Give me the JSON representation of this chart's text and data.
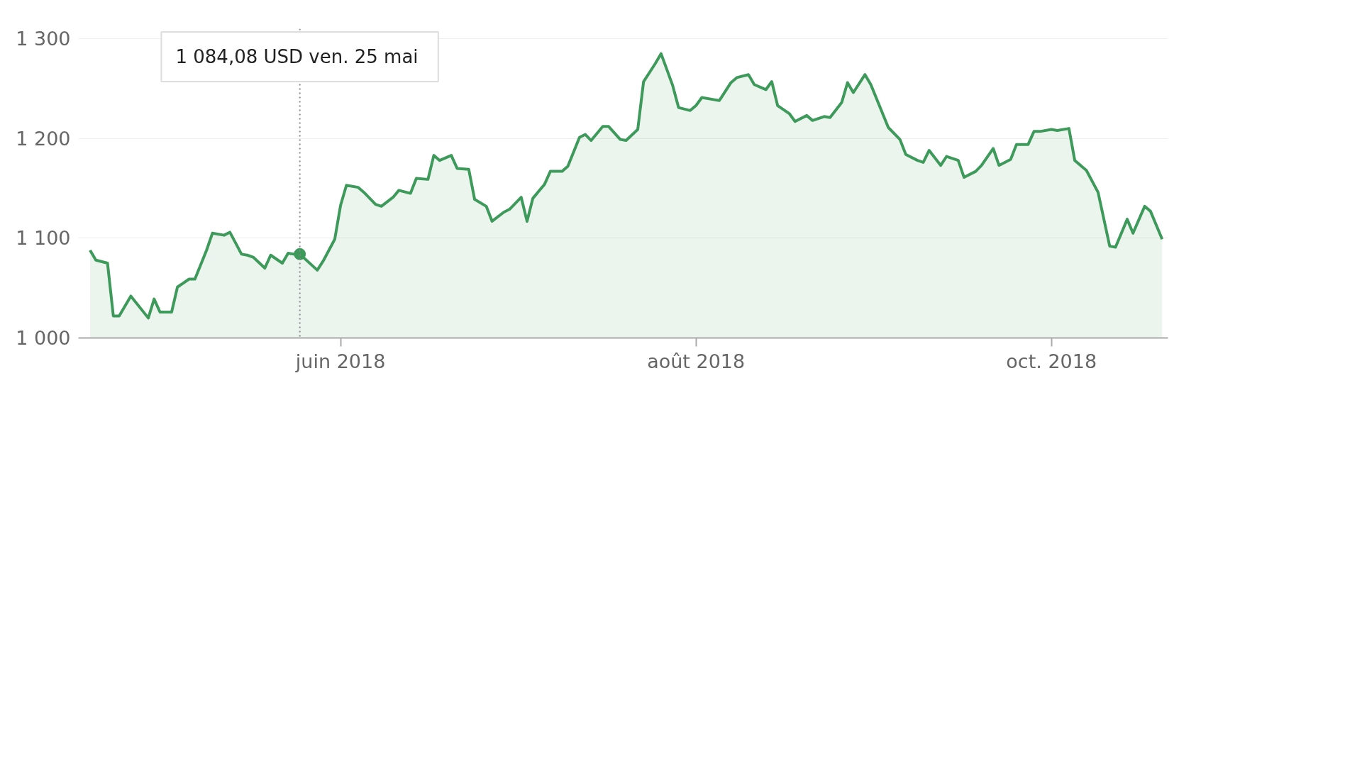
{
  "chart_data": {
    "type": "area",
    "color": "#3d9a5a",
    "grid": "y",
    "marker": "none",
    "line_style": "solid",
    "x": [
      "2018-04-19",
      "2018-04-20",
      "2018-04-22",
      "2018-04-23",
      "2018-04-24",
      "2018-04-26",
      "2018-04-29",
      "2018-04-30",
      "2018-05-01",
      "2018-05-03",
      "2018-05-04",
      "2018-05-06",
      "2018-05-07",
      "2018-05-09",
      "2018-05-10",
      "2018-05-12",
      "2018-05-13",
      "2018-05-15",
      "2018-05-16",
      "2018-05-17",
      "2018-05-19",
      "2018-05-20",
      "2018-05-22",
      "2018-05-23",
      "2018-05-24",
      "2018-05-25",
      "2018-05-28",
      "2018-05-29",
      "2018-05-31",
      "2018-06-01",
      "2018-06-02",
      "2018-06-04",
      "2018-06-05",
      "2018-06-07",
      "2018-06-08",
      "2018-06-10",
      "2018-06-11",
      "2018-06-13",
      "2018-06-14",
      "2018-06-16",
      "2018-06-17",
      "2018-06-18",
      "2018-06-20",
      "2018-06-21",
      "2018-06-23",
      "2018-06-24",
      "2018-06-26",
      "2018-06-27",
      "2018-06-29",
      "2018-06-30",
      "2018-07-02",
      "2018-07-03",
      "2018-07-04",
      "2018-07-06",
      "2018-07-07",
      "2018-07-09",
      "2018-07-10",
      "2018-07-12",
      "2018-07-13",
      "2018-07-14",
      "2018-07-16",
      "2018-07-17",
      "2018-07-19",
      "2018-07-20",
      "2018-07-22",
      "2018-07-23",
      "2018-07-25",
      "2018-07-26",
      "2018-07-28",
      "2018-07-29",
      "2018-07-31",
      "2018-08-01",
      "2018-08-02",
      "2018-08-04",
      "2018-08-05",
      "2018-08-07",
      "2018-08-08",
      "2018-08-10",
      "2018-08-11",
      "2018-08-13",
      "2018-08-14",
      "2018-08-15",
      "2018-08-17",
      "2018-08-18",
      "2018-08-20",
      "2018-08-21",
      "2018-08-23",
      "2018-08-24",
      "2018-08-26",
      "2018-08-27",
      "2018-08-28",
      "2018-08-30",
      "2018-08-31",
      "2018-09-03",
      "2018-09-05",
      "2018-09-06",
      "2018-09-08",
      "2018-09-09",
      "2018-09-10",
      "2018-09-12",
      "2018-09-13",
      "2018-09-15",
      "2018-09-16",
      "2018-09-18",
      "2018-09-19",
      "2018-09-21",
      "2018-09-22",
      "2018-09-24",
      "2018-09-25",
      "2018-09-27",
      "2018-09-28",
      "2018-09-29",
      "2018-10-01",
      "2018-10-02",
      "2018-10-04",
      "2018-10-05",
      "2018-10-07",
      "2018-10-09",
      "2018-10-11",
      "2018-10-12",
      "2018-10-14",
      "2018-10-15",
      "2018-10-17",
      "2018-10-18",
      "2018-10-20"
    ],
    "values": [
      1088,
      1078,
      1075,
      1022,
      1022,
      1042,
      1020,
      1039,
      1026,
      1026,
      1051,
      1059,
      1059,
      1088,
      1105,
      1103,
      1106,
      1084,
      1083,
      1081,
      1070,
      1083,
      1075,
      1085,
      1084,
      1084.08,
      1068,
      1077,
      1099,
      1133,
      1153,
      1151,
      1146,
      1134,
      1132,
      1141,
      1148,
      1145,
      1160,
      1159,
      1183,
      1178,
      1183,
      1170,
      1169,
      1139,
      1132,
      1117,
      1126,
      1129,
      1141,
      1117,
      1140,
      1154,
      1167,
      1167,
      1172,
      1201,
      1204,
      1198,
      1212,
      1212,
      1199,
      1198,
      1209,
      1257,
      1275,
      1285,
      1253,
      1231,
      1228,
      1233,
      1241,
      1239,
      1238,
      1256,
      1261,
      1264,
      1254,
      1249,
      1257,
      1233,
      1225,
      1217,
      1223,
      1218,
      1222,
      1221,
      1236,
      1256,
      1246,
      1264,
      1254,
      1211,
      1199,
      1184,
      1178,
      1176,
      1188,
      1173,
      1182,
      1178,
      1161,
      1167,
      1173,
      1190,
      1173,
      1179,
      1194,
      1194,
      1207,
      1207,
      1209,
      1208,
      1210,
      1178,
      1168,
      1146,
      1092,
      1091,
      1119,
      1105,
      1132,
      1127,
      1099
    ],
    "xlim": [
      "2018-04-17",
      "2018-10-21"
    ],
    "xticks": [
      {
        "value": "2018-06-01",
        "label": "juin 2018"
      },
      {
        "value": "2018-08-01",
        "label": "août 2018"
      },
      {
        "value": "2018-10-01",
        "label": "oct. 2018"
      }
    ],
    "ylim": [
      1000,
      1310
    ],
    "yticks": [
      {
        "value": 1000,
        "label": "1 000"
      },
      {
        "value": 1100,
        "label": "1 100"
      },
      {
        "value": 1200,
        "label": "1 200"
      },
      {
        "value": 1300,
        "label": "1 300"
      }
    ],
    "ref_lines": [
      {
        "axis": "x",
        "value": "2018-05-25",
        "color": "#888888",
        "line_style": "dotted"
      }
    ],
    "annotations": [
      "1 084,08 USD  ven. 25 mai"
    ]
  }
}
